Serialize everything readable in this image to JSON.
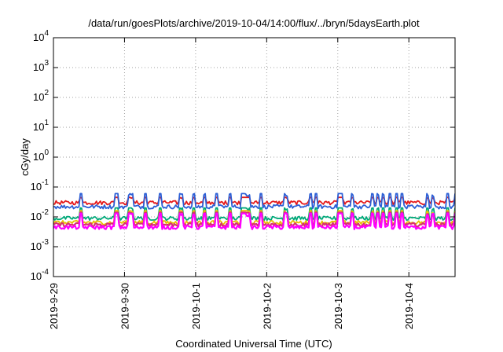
{
  "chart_data": {
    "type": "line",
    "title": "/data/run/goesPlots/archive/2019-10-04/14:00/flux/../bryn/5daysEarth.plot",
    "xlabel": "Coordinated Universal Time (UTC)",
    "ylabel": "cGy/day",
    "yscale": "log",
    "ylim": [
      0.0001,
      10000
    ],
    "xlim_days": [
      0,
      5.65
    ],
    "grid": true,
    "x_ticks": [
      {
        "pos": 0,
        "label": "2019-9-29"
      },
      {
        "pos": 1,
        "label": "2019-9-30"
      },
      {
        "pos": 2,
        "label": "2019-10-1"
      },
      {
        "pos": 3,
        "label": "2019-10-2"
      },
      {
        "pos": 4,
        "label": "2019-10-3"
      },
      {
        "pos": 5,
        "label": "2019-10-4"
      }
    ],
    "y_ticks": [
      {
        "exp": -4,
        "label": "10",
        "sup": "-4"
      },
      {
        "exp": -3,
        "label": "10",
        "sup": "-3"
      },
      {
        "exp": -2,
        "label": "10",
        "sup": "-2"
      },
      {
        "exp": -1,
        "label": "10",
        "sup": "-1"
      },
      {
        "exp": 0,
        "label": "10",
        "sup": "0"
      },
      {
        "exp": 1,
        "label": "10",
        "sup": "1"
      },
      {
        "exp": 2,
        "label": "10",
        "sup": "2"
      },
      {
        "exp": 3,
        "label": "10",
        "sup": "3"
      },
      {
        "exp": 4,
        "label": "10",
        "sup": "4"
      }
    ],
    "series": [
      {
        "color": "#e41a1c",
        "baseline": 0.03,
        "peak": 0.045
      },
      {
        "color": "#2c5fd6",
        "baseline": 0.022,
        "peak": 0.06
      },
      {
        "color": "#00a879",
        "baseline": 0.009,
        "peak": 0.02
      },
      {
        "color": "#e8c000",
        "baseline": 0.0065,
        "peak": 0.016
      },
      {
        "color": "#d6336c",
        "baseline": 0.0055,
        "peak": 0.014
      },
      {
        "color": "#ff00ff",
        "baseline": 0.0045,
        "peak": 0.013
      }
    ]
  }
}
